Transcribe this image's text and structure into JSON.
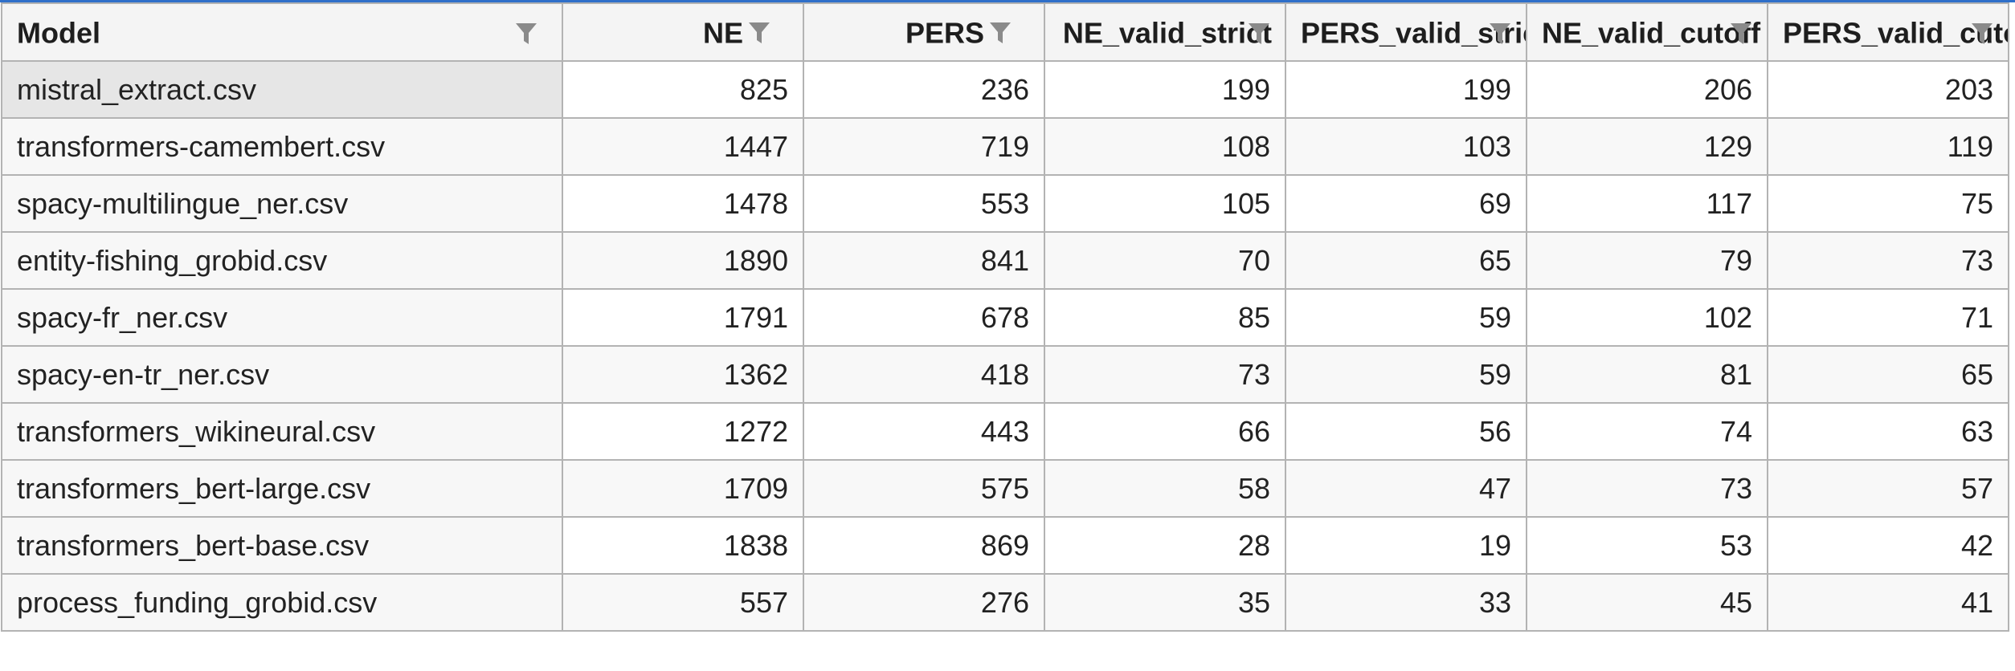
{
  "columns": [
    {
      "label": "Model",
      "align": "left"
    },
    {
      "label": "NE",
      "align": "right"
    },
    {
      "label": "PERS",
      "align": "right"
    },
    {
      "label": "NE_valid_strict",
      "align": "right"
    },
    {
      "label": "PERS_valid_strict",
      "align": "right"
    },
    {
      "label": "NE_valid_cutoff",
      "align": "right"
    },
    {
      "label": "PERS_valid_cutoff",
      "align": "right"
    }
  ],
  "rows": [
    {
      "model": "mistral_extract.csv",
      "cells": [
        "825",
        "236",
        "199",
        "199",
        "206",
        "203"
      ]
    },
    {
      "model": "transformers-camembert.csv",
      "cells": [
        "1447",
        "719",
        "108",
        "103",
        "129",
        "119"
      ]
    },
    {
      "model": "spacy-multilingue_ner.csv",
      "cells": [
        "1478",
        "553",
        "105",
        "69",
        "117",
        "75"
      ]
    },
    {
      "model": "entity-fishing_grobid.csv",
      "cells": [
        "1890",
        "841",
        "70",
        "65",
        "79",
        "73"
      ]
    },
    {
      "model": "spacy-fr_ner.csv",
      "cells": [
        "1791",
        "678",
        "85",
        "59",
        "102",
        "71"
      ]
    },
    {
      "model": "spacy-en-tr_ner.csv",
      "cells": [
        "1362",
        "418",
        "73",
        "59",
        "81",
        "65"
      ]
    },
    {
      "model": "transformers_wikineural.csv",
      "cells": [
        "1272",
        "443",
        "66",
        "56",
        "74",
        "63"
      ]
    },
    {
      "model": "transformers_bert-large.csv",
      "cells": [
        "1709",
        "575",
        "58",
        "47",
        "73",
        "57"
      ]
    },
    {
      "model": "transformers_bert-base.csv",
      "cells": [
        "1838",
        "869",
        "28",
        "19",
        "53",
        "42"
      ]
    },
    {
      "model": "process_funding_grobid.csv",
      "cells": [
        "557",
        "276",
        "35",
        "33",
        "45",
        "41"
      ]
    }
  ],
  "icons": {
    "column_filter": "filter-funnel-icon"
  },
  "colors": {
    "accent_top_border": "#2f6fc9",
    "grid_line": "#b3b3b3",
    "header_bg": "#f4f4f4",
    "selected_row_bg": "#e6e6e6"
  }
}
